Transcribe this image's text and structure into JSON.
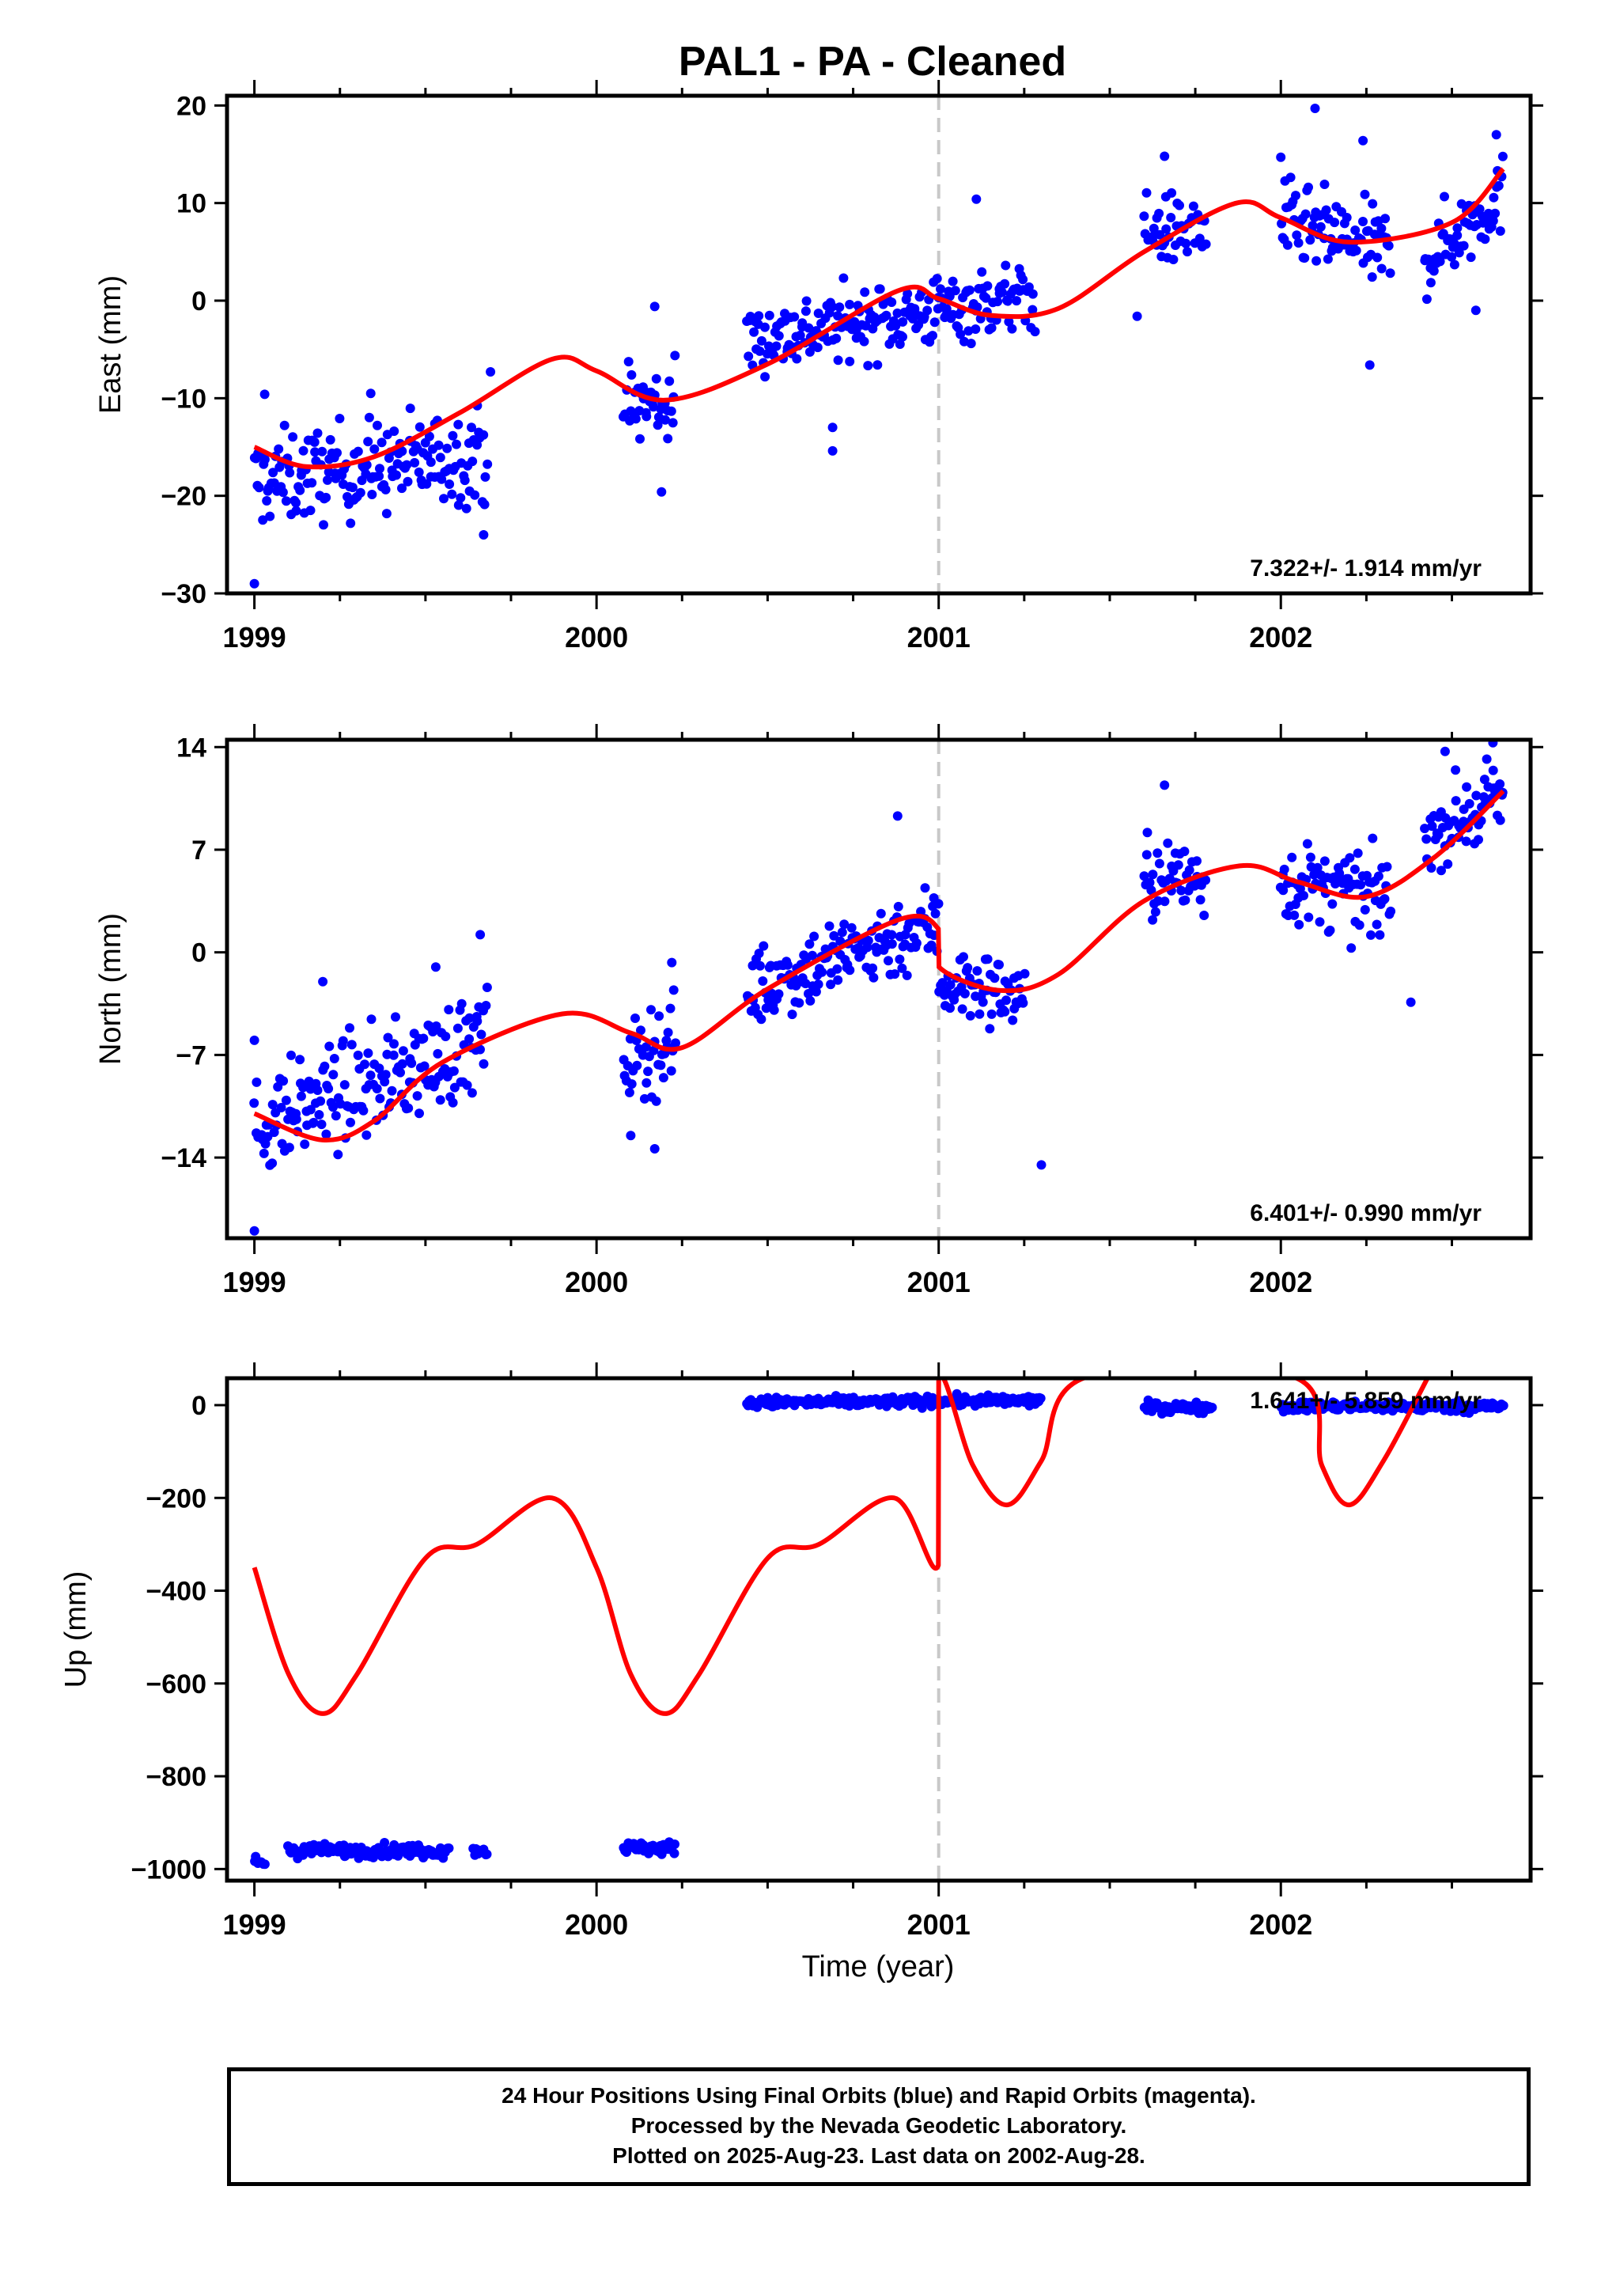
{
  "title": "PAL1  - PA - Cleaned",
  "colors": {
    "data": "#0000ff",
    "fit": "#ff0000",
    "dashed": "#c8c8c8",
    "frame": "#000000"
  },
  "footer": {
    "line1": "24 Hour Positions Using Final Orbits (blue) and Rapid Orbits (magenta).",
    "line2": "Processed by the Nevada Geodetic Laboratory.",
    "line3": "Plotted on 2025-Aug-23. Last data on 2002-Aug-28."
  },
  "chart_data": [
    {
      "type": "scatter",
      "ylabel": "East (mm)",
      "xlabel": "",
      "xlim": [
        1998.92,
        2002.73
      ],
      "ylim": [
        -30,
        21
      ],
      "yticks": [
        -30,
        -20,
        -10,
        0,
        10,
        20
      ],
      "ytick_labels": [
        "−30",
        "−20",
        "−10",
        "0",
        "10",
        "20"
      ],
      "xticks": [
        1999,
        2000,
        2001,
        2002
      ],
      "xtick_labels": [
        "1999",
        "2000",
        "2001",
        "2002"
      ],
      "event_line_x": 2001.0,
      "rate_label": "7.322+/- 1.914 mm/yr",
      "rate": 7.322,
      "sigma": 1.914,
      "segments": [
        {
          "x0": 1999.0,
          "x1": 1999.68,
          "y0": -18.6,
          "y1": -15.6,
          "spread": 3.4
        },
        {
          "x0": 2000.08,
          "x1": 2000.23,
          "y0": -10.9,
          "y1": -10.4,
          "spread": 3.2
        },
        {
          "x0": 2000.44,
          "x1": 2001.28,
          "y0": -4.0,
          "y1": 0.5,
          "spread": 2.6
        },
        {
          "x0": 2001.6,
          "x1": 2001.78,
          "y0": 7.0,
          "y1": 7.5,
          "spread": 2.6
        },
        {
          "x0": 2002.0,
          "x1": 2002.32,
          "y0": 8.0,
          "y1": 5.0,
          "spread": 3.0
        },
        {
          "x0": 2002.42,
          "x1": 2002.65,
          "y0": 4.0,
          "y1": 11.0,
          "spread": 2.8
        }
      ],
      "outliers": [
        {
          "x": 1999.0,
          "y": -29.0
        },
        {
          "x": 1999.03,
          "y": -9.6
        },
        {
          "x": 1999.34,
          "y": -9.5
        },
        {
          "x": 1999.67,
          "y": -24.0
        },
        {
          "x": 1999.69,
          "y": -7.3
        },
        {
          "x": 2000.17,
          "y": -0.6
        },
        {
          "x": 2000.19,
          "y": -19.6
        },
        {
          "x": 2000.69,
          "y": -15.4
        },
        {
          "x": 2000.69,
          "y": -13.0
        },
        {
          "x": 2001.11,
          "y": 10.4
        },
        {
          "x": 2001.58,
          "y": -1.6
        },
        {
          "x": 2001.66,
          "y": 14.8
        },
        {
          "x": 2002.0,
          "y": 14.7
        },
        {
          "x": 2002.1,
          "y": 19.7
        },
        {
          "x": 2002.24,
          "y": 16.4
        },
        {
          "x": 2002.26,
          "y": -6.6
        },
        {
          "x": 2002.63,
          "y": 17.0
        },
        {
          "x": 2002.57,
          "y": -1.0
        }
      ],
      "fit": [
        {
          "x": 1999.0,
          "y": -15.0
        },
        {
          "x": 1999.15,
          "y": -17.0
        },
        {
          "x": 1999.35,
          "y": -16.0
        },
        {
          "x": 1999.6,
          "y": -11.5
        },
        {
          "x": 1999.87,
          "y": -6.0
        },
        {
          "x": 2000.0,
          "y": -7.2
        },
        {
          "x": 2000.2,
          "y": -10.2
        },
        {
          "x": 2000.5,
          "y": -6.5
        },
        {
          "x": 2000.88,
          "y": 1.0
        },
        {
          "x": 2001.0,
          "y": 0.2
        },
        {
          "x": 2001.15,
          "y": -1.5
        },
        {
          "x": 2001.35,
          "y": -0.8
        },
        {
          "x": 2001.6,
          "y": 5.0
        },
        {
          "x": 2001.87,
          "y": 10.0
        },
        {
          "x": 2002.0,
          "y": 8.5
        },
        {
          "x": 2002.2,
          "y": 6.0
        },
        {
          "x": 2002.5,
          "y": 8.0
        },
        {
          "x": 2002.65,
          "y": 13.5
        }
      ]
    },
    {
      "type": "scatter",
      "ylabel": "North (mm)",
      "xlabel": "",
      "xlim": [
        1998.92,
        2002.73
      ],
      "ylim": [
        -19.5,
        14.5
      ],
      "yticks": [
        -14,
        -7,
        0,
        7,
        14
      ],
      "ytick_labels": [
        "−14",
        "−7",
        "0",
        "7",
        "14"
      ],
      "xticks": [
        1999,
        2000,
        2001,
        2002
      ],
      "xtick_labels": [
        "1999",
        "2000",
        "2001",
        "2002"
      ],
      "event_line_x": 2001.0,
      "rate_label": "6.401+/- 0.990 mm/yr",
      "rate": 6.401,
      "sigma": 0.99,
      "segments": [
        {
          "x0": 1999.0,
          "x1": 1999.68,
          "y0": -11.8,
          "y1": -6.0,
          "spread": 2.5
        },
        {
          "x0": 2000.08,
          "x1": 2000.23,
          "y0": -7.5,
          "y1": -6.0,
          "spread": 2.2
        },
        {
          "x0": 2000.44,
          "x1": 2001.0,
          "y0": -2.5,
          "y1": 2.0,
          "spread": 2.0
        },
        {
          "x0": 2001.0,
          "x1": 2001.25,
          "y0": -2.0,
          "y1": -3.0,
          "spread": 1.8
        },
        {
          "x0": 2001.6,
          "x1": 2001.78,
          "y0": 5.0,
          "y1": 5.0,
          "spread": 2.0
        },
        {
          "x0": 2002.0,
          "x1": 2002.32,
          "y0": 4.8,
          "y1": 3.5,
          "spread": 2.0
        },
        {
          "x0": 2002.42,
          "x1": 2002.65,
          "y0": 8.0,
          "y1": 10.5,
          "spread": 1.8
        }
      ],
      "outliers": [
        {
          "x": 1999.0,
          "y": -19.0
        },
        {
          "x": 1999.0,
          "y": -6.0
        },
        {
          "x": 1999.2,
          "y": -2.0
        },
        {
          "x": 1999.53,
          "y": -1.0
        },
        {
          "x": 1999.66,
          "y": 1.2
        },
        {
          "x": 2000.1,
          "y": -12.5
        },
        {
          "x": 2000.17,
          "y": -13.4
        },
        {
          "x": 2000.22,
          "y": -0.7
        },
        {
          "x": 2000.88,
          "y": 9.3
        },
        {
          "x": 2001.3,
          "y": -14.5
        },
        {
          "x": 2001.66,
          "y": 11.4
        },
        {
          "x": 2002.48,
          "y": 13.7
        },
        {
          "x": 2002.62,
          "y": 14.3
        },
        {
          "x": 2002.38,
          "y": -3.4
        }
      ],
      "fit": [
        {
          "x": 1999.0,
          "y": -11.0
        },
        {
          "x": 1999.2,
          "y": -12.8
        },
        {
          "x": 1999.35,
          "y": -11.5
        },
        {
          "x": 1999.55,
          "y": -7.5
        },
        {
          "x": 1999.9,
          "y": -4.2
        },
        {
          "x": 2000.1,
          "y": -5.5
        },
        {
          "x": 2000.25,
          "y": -6.5
        },
        {
          "x": 2000.5,
          "y": -2.5
        },
        {
          "x": 2000.88,
          "y": 2.2
        },
        {
          "x": 2000.999,
          "y": 1.6
        },
        {
          "x": 2001.001,
          "y": -1.0
        },
        {
          "x": 2001.18,
          "y": -2.6
        },
        {
          "x": 2001.35,
          "y": -1.5
        },
        {
          "x": 2001.6,
          "y": 3.5
        },
        {
          "x": 2001.88,
          "y": 5.9
        },
        {
          "x": 2002.05,
          "y": 4.8
        },
        {
          "x": 2002.25,
          "y": 3.8
        },
        {
          "x": 2002.45,
          "y": 6.5
        },
        {
          "x": 2002.65,
          "y": 11.0
        }
      ]
    },
    {
      "type": "scatter",
      "ylabel": "Up (mm)",
      "xlabel": "Time (year)",
      "xlim": [
        1998.92,
        2002.73
      ],
      "ylim": [
        -1025,
        58
      ],
      "yticks": [
        -1000,
        -800,
        -600,
        -400,
        -200,
        0
      ],
      "ytick_labels": [
        "−1000",
        "−800",
        "−600",
        "−400",
        "−200",
        "0"
      ],
      "xticks": [
        1999,
        2000,
        2001,
        2002
      ],
      "xtick_labels": [
        "1999",
        "2000",
        "2001",
        "2002"
      ],
      "event_line_x": 2001.0,
      "rate_label": "1.641+/- 5.859 mm/yr",
      "rate": 1.641,
      "sigma": 5.859,
      "segments": [
        {
          "x0": 1999.0,
          "x1": 1999.03,
          "y0": -985,
          "y1": -985,
          "spread": 12
        },
        {
          "x0": 1999.1,
          "x1": 1999.57,
          "y0": -960,
          "y1": -960,
          "spread": 10
        },
        {
          "x0": 1999.64,
          "x1": 1999.68,
          "y0": -960,
          "y1": -960,
          "spread": 8
        },
        {
          "x0": 2000.08,
          "x1": 2000.23,
          "y0": -955,
          "y1": -955,
          "spread": 10
        },
        {
          "x0": 2000.44,
          "x1": 2001.3,
          "y0": 5,
          "y1": 10,
          "spread": 8
        },
        {
          "x0": 2001.6,
          "x1": 2001.8,
          "y0": -5,
          "y1": -5,
          "spread": 8
        },
        {
          "x0": 2002.0,
          "x1": 2002.65,
          "y0": -3,
          "y1": -3,
          "spread": 8
        }
      ],
      "outliers": [],
      "fit": [
        {
          "x": 1999.0,
          "y": -350
        },
        {
          "x": 1999.1,
          "y": -580
        },
        {
          "x": 1999.2,
          "y": -665
        },
        {
          "x": 1999.3,
          "y": -580
        },
        {
          "x": 1999.5,
          "y": -330
        },
        {
          "x": 1999.65,
          "y": -300
        },
        {
          "x": 1999.87,
          "y": -200
        },
        {
          "x": 2000.0,
          "y": -350
        },
        {
          "x": 2000.1,
          "y": -580
        },
        {
          "x": 2000.2,
          "y": -665
        },
        {
          "x": 2000.3,
          "y": -580
        },
        {
          "x": 2000.5,
          "y": -330
        },
        {
          "x": 2000.65,
          "y": -300
        },
        {
          "x": 2000.87,
          "y": -200
        },
        {
          "x": 2000.999,
          "y": -345
        },
        {
          "x": 2001.0,
          "y": 60
        },
        {
          "x": 2001.1,
          "y": -130
        },
        {
          "x": 2001.2,
          "y": -215
        },
        {
          "x": 2001.3,
          "y": -120
        },
        {
          "x": 2001.43,
          "y": 60
        },
        {
          "x": 2002.04,
          "y": 60
        },
        {
          "x": 2002.12,
          "y": -130
        },
        {
          "x": 2002.2,
          "y": -215
        },
        {
          "x": 2002.3,
          "y": -120
        },
        {
          "x": 2002.43,
          "y": 60
        }
      ]
    }
  ]
}
